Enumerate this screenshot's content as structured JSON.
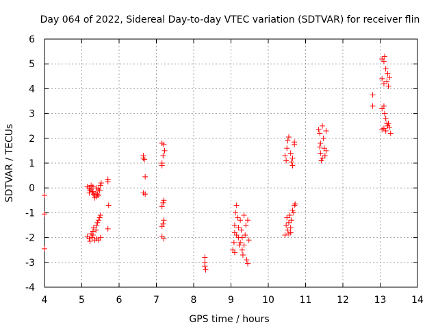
{
  "chart_data": {
    "type": "scatter",
    "title": "Day 064 of 2022, Sidereal Day-to-day VTEC variation (SDTVAR) for receiver flin",
    "xlabel": "GPS time / hours",
    "ylabel": "SDTVAR / TECUs",
    "xlim": [
      4,
      14
    ],
    "ylim": [
      -4,
      6
    ],
    "x_ticks": [
      "4",
      "5",
      "6",
      "7",
      "8",
      "9",
      "10",
      "11",
      "12",
      "13",
      "14"
    ],
    "y_ticks": [
      "-4",
      "-3",
      "-2",
      "-1",
      "0",
      "1",
      "2",
      "3",
      "4",
      "5",
      "6"
    ],
    "grid": true,
    "marker": "+",
    "colors": {
      "points": "#ff0000",
      "grid": "#a0a0a0",
      "axes": "#000000"
    },
    "series": [
      {
        "name": "SDTVAR",
        "points": [
          [
            4.0,
            -0.3
          ],
          [
            4.0,
            -1.05
          ],
          [
            4.0,
            -2.45
          ],
          [
            5.15,
            0.05
          ],
          [
            5.2,
            0.0
          ],
          [
            5.22,
            -0.1
          ],
          [
            5.25,
            -0.05
          ],
          [
            5.28,
            -0.2
          ],
          [
            5.3,
            -0.15
          ],
          [
            5.32,
            -0.25
          ],
          [
            5.35,
            -0.3
          ],
          [
            5.38,
            -0.2
          ],
          [
            5.4,
            -0.35
          ],
          [
            5.42,
            -0.25
          ],
          [
            5.45,
            -0.3
          ],
          [
            5.48,
            -0.1
          ],
          [
            5.5,
            0.1
          ],
          [
            5.52,
            0.2
          ],
          [
            5.25,
            0.1
          ],
          [
            5.3,
            0.05
          ],
          [
            5.35,
            -0.4
          ],
          [
            5.4,
            0.0
          ],
          [
            5.45,
            -0.05
          ],
          [
            5.2,
            -0.2
          ],
          [
            5.15,
            -1.95
          ],
          [
            5.2,
            -2.05
          ],
          [
            5.25,
            -1.85
          ],
          [
            5.28,
            -2.0
          ],
          [
            5.3,
            -1.9
          ],
          [
            5.35,
            -2.1
          ],
          [
            5.38,
            -1.7
          ],
          [
            5.4,
            -1.5
          ],
          [
            5.42,
            -1.4
          ],
          [
            5.45,
            -1.3
          ],
          [
            5.48,
            -1.2
          ],
          [
            5.5,
            -1.1
          ],
          [
            5.4,
            -2.05
          ],
          [
            5.45,
            -2.1
          ],
          [
            5.5,
            -2.0
          ],
          [
            5.22,
            -2.15
          ],
          [
            5.32,
            -1.6
          ],
          [
            5.3,
            -1.75
          ],
          [
            5.7,
            0.35
          ],
          [
            5.7,
            0.25
          ],
          [
            5.72,
            -0.7
          ],
          [
            5.7,
            -1.65
          ],
          [
            6.65,
            1.3
          ],
          [
            6.65,
            1.2
          ],
          [
            6.68,
            1.15
          ],
          [
            6.7,
            0.45
          ],
          [
            6.65,
            -0.2
          ],
          [
            6.7,
            -0.25
          ],
          [
            7.15,
            1.8
          ],
          [
            7.2,
            1.75
          ],
          [
            7.22,
            1.5
          ],
          [
            7.18,
            1.3
          ],
          [
            7.15,
            1.0
          ],
          [
            7.15,
            0.9
          ],
          [
            7.2,
            -0.5
          ],
          [
            7.18,
            -0.6
          ],
          [
            7.15,
            -0.75
          ],
          [
            7.2,
            -1.3
          ],
          [
            7.18,
            -1.45
          ],
          [
            7.15,
            -1.55
          ],
          [
            7.15,
            -1.95
          ],
          [
            7.2,
            -2.05
          ],
          [
            8.3,
            -2.8
          ],
          [
            8.3,
            -3.0
          ],
          [
            8.3,
            -3.15
          ],
          [
            8.32,
            -3.3
          ],
          [
            9.05,
            -2.5
          ],
          [
            9.08,
            -2.2
          ],
          [
            9.1,
            -1.8
          ],
          [
            9.1,
            -1.5
          ],
          [
            9.12,
            -1.0
          ],
          [
            9.15,
            -0.7
          ],
          [
            9.18,
            -1.2
          ],
          [
            9.2,
            -1.6
          ],
          [
            9.2,
            -2.0
          ],
          [
            9.22,
            -2.3
          ],
          [
            9.25,
            -1.3
          ],
          [
            9.28,
            -1.7
          ],
          [
            9.3,
            -2.0
          ],
          [
            9.3,
            -2.5
          ],
          [
            9.32,
            -2.7
          ],
          [
            9.35,
            -2.3
          ],
          [
            9.38,
            -1.9
          ],
          [
            9.4,
            -1.5
          ],
          [
            9.42,
            -2.9
          ],
          [
            9.45,
            -3.05
          ],
          [
            9.45,
            -1.3
          ],
          [
            9.48,
            -2.1
          ],
          [
            9.35,
            -1.1
          ],
          [
            9.15,
            -1.9
          ],
          [
            9.25,
            -2.2
          ],
          [
            9.1,
            -2.6
          ],
          [
            10.45,
            1.3
          ],
          [
            10.48,
            1.1
          ],
          [
            10.5,
            1.6
          ],
          [
            10.52,
            1.9
          ],
          [
            10.55,
            2.05
          ],
          [
            10.6,
            1.4
          ],
          [
            10.65,
            1.2
          ],
          [
            10.65,
            0.9
          ],
          [
            10.7,
            1.85
          ],
          [
            10.7,
            1.75
          ],
          [
            10.62,
            1.05
          ],
          [
            10.45,
            -1.9
          ],
          [
            10.48,
            -1.5
          ],
          [
            10.5,
            -1.2
          ],
          [
            10.52,
            -1.7
          ],
          [
            10.55,
            -1.4
          ],
          [
            10.58,
            -1.1
          ],
          [
            10.6,
            -1.6
          ],
          [
            10.62,
            -1.3
          ],
          [
            10.65,
            -0.9
          ],
          [
            10.68,
            -1.0
          ],
          [
            10.7,
            -0.7
          ],
          [
            10.72,
            -0.65
          ],
          [
            10.55,
            -1.85
          ],
          [
            10.6,
            -1.8
          ],
          [
            11.35,
            2.35
          ],
          [
            11.38,
            2.2
          ],
          [
            11.4,
            1.8
          ],
          [
            11.4,
            1.4
          ],
          [
            11.42,
            1.1
          ],
          [
            11.45,
            2.5
          ],
          [
            11.48,
            2.0
          ],
          [
            11.5,
            1.6
          ],
          [
            11.52,
            1.3
          ],
          [
            11.55,
            2.3
          ],
          [
            11.55,
            1.5
          ],
          [
            11.38,
            1.65
          ],
          [
            11.45,
            1.2
          ],
          [
            12.8,
            3.75
          ],
          [
            12.8,
            3.3
          ],
          [
            13.05,
            5.2
          ],
          [
            13.1,
            5.1
          ],
          [
            13.12,
            5.3
          ],
          [
            13.15,
            4.8
          ],
          [
            13.18,
            4.3
          ],
          [
            13.2,
            4.6
          ],
          [
            13.22,
            4.1
          ],
          [
            13.25,
            4.45
          ],
          [
            13.05,
            4.4
          ],
          [
            13.1,
            4.2
          ],
          [
            13.05,
            3.2
          ],
          [
            13.1,
            3.3
          ],
          [
            13.12,
            3.0
          ],
          [
            13.15,
            2.8
          ],
          [
            13.18,
            2.6
          ],
          [
            13.1,
            2.4
          ],
          [
            13.15,
            2.3
          ],
          [
            13.2,
            2.5
          ],
          [
            13.25,
            2.45
          ],
          [
            13.28,
            2.2
          ],
          [
            13.05,
            2.35
          ],
          [
            13.22,
            2.6
          ]
        ]
      }
    ]
  }
}
